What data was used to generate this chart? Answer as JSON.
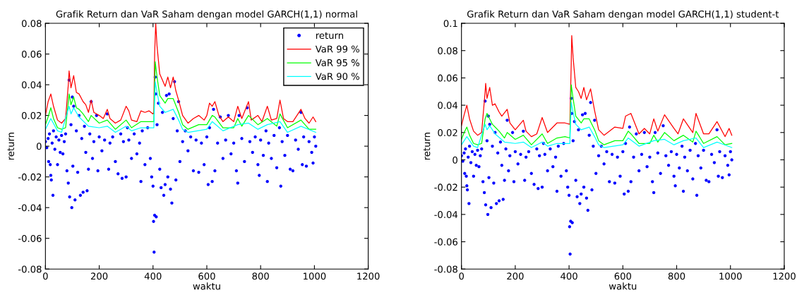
{
  "chart_data": [
    {
      "type": "line",
      "title": "Grafik Return dan VaR Saham dengan model GARCH(1,1) normal",
      "xlabel": "waktu",
      "ylabel": "return",
      "xlim": [
        0,
        1200
      ],
      "ylim": [
        -0.08,
        0.08
      ],
      "xticks": [
        0,
        200,
        400,
        600,
        800,
        1000,
        1200
      ],
      "yticks": [
        -0.08,
        -0.06,
        -0.04,
        -0.02,
        0,
        0.02,
        0.04,
        0.06,
        0.08
      ],
      "legend": "top right",
      "series": [
        {
          "name": "return",
          "type": "scatter",
          "marker": "circle",
          "color": "#0000ff",
          "x": [
            0,
            5,
            10,
            12,
            15,
            18,
            20,
            22,
            25,
            28,
            30,
            35,
            40,
            45,
            50,
            55,
            60,
            65,
            70,
            75,
            80,
            85,
            88,
            90,
            95,
            98,
            100,
            102,
            105,
            110,
            115,
            120,
            125,
            130,
            135,
            140,
            145,
            150,
            155,
            160,
            165,
            170,
            175,
            180,
            190,
            195,
            200,
            210,
            220,
            230,
            235,
            240,
            250,
            260,
            270,
            280,
            285,
            290,
            300,
            305,
            310,
            320,
            330,
            340,
            350,
            355,
            360,
            370,
            380,
            390,
            395,
            400,
            402,
            404,
            406,
            408,
            410,
            412,
            415,
            420,
            425,
            430,
            435,
            440,
            445,
            450,
            455,
            460,
            465,
            470,
            475,
            480,
            485,
            490,
            495,
            500,
            510,
            520,
            530,
            540,
            550,
            560,
            570,
            580,
            590,
            600,
            605,
            610,
            620,
            625,
            630,
            640,
            650,
            660,
            670,
            680,
            690,
            700,
            710,
            715,
            720,
            730,
            740,
            750,
            760,
            770,
            780,
            790,
            795,
            800,
            810,
            820,
            825,
            830,
            840,
            850,
            860,
            870,
            875,
            880,
            890,
            900,
            910,
            920,
            930,
            940,
            950,
            955,
            960,
            970,
            980,
            990,
            995,
            1000,
            1005
          ],
          "values": [
            0.003,
            -0.001,
            0.005,
            -0.01,
            0.008,
            -0.012,
            -0.019,
            -0.022,
            0.002,
            -0.032,
            0.01,
            -0.002,
            0.006,
            -0.012,
            0.004,
            -0.004,
            0.007,
            -0.005,
            0.003,
            0.008,
            -0.016,
            -0.024,
            0.043,
            -0.033,
            0.014,
            -0.04,
            0.032,
            -0.013,
            0.026,
            -0.035,
            0.01,
            -0.017,
            0.02,
            -0.032,
            0.005,
            -0.03,
            0.013,
            -0.004,
            -0.029,
            -0.015,
            0.008,
            0.029,
            -0.008,
            0.003,
            0.02,
            -0.016,
            0.006,
            -0.003,
            0.004,
            0.021,
            -0.015,
            0.002,
            0.006,
            -0.01,
            -0.018,
            0.008,
            -0.021,
            0.003,
            -0.02,
            0.012,
            0.004,
            -0.008,
            0.008,
            -0.005,
            0.002,
            -0.023,
            0.01,
            -0.012,
            0.012,
            -0.008,
            -0.02,
            -0.026,
            -0.049,
            -0.069,
            -0.045,
            0.045,
            0.034,
            -0.046,
            0.014,
            0.028,
            -0.015,
            -0.027,
            0.022,
            -0.032,
            -0.025,
            0.033,
            -0.02,
            0.034,
            -0.028,
            -0.037,
            0.018,
            0.042,
            -0.022,
            0.01,
            0.029,
            -0.01,
            0.003,
            0.01,
            -0.003,
            0.006,
            -0.016,
            0.004,
            -0.017,
            0.002,
            -0.012,
            0.006,
            -0.025,
            0.012,
            -0.023,
            0.024,
            -0.016,
            0.002,
            0.019,
            -0.008,
            0.004,
            0.02,
            -0.005,
            0.002,
            -0.016,
            -0.024,
            0.02,
            0.005,
            -0.01,
            0.025,
            0.003,
            -0.004,
            0.006,
            -0.012,
            -0.019,
            0.004,
            -0.006,
            0.01,
            -0.023,
            0.002,
            -0.008,
            0.007,
            -0.014,
            0.012,
            -0.026,
            0.003,
            -0.006,
            0.007,
            -0.015,
            -0.016,
            0.004,
            -0.002,
            0.022,
            -0.012,
            0.006,
            -0.013,
            0.003,
            -0.004,
            -0.011,
            0.006,
            0
          ]
        },
        {
          "name": "VaR 99 %",
          "color": "#ff0000",
          "x": [
            0,
            10,
            20,
            30,
            45,
            60,
            75,
            85,
            88,
            95,
            105,
            115,
            125,
            140,
            150,
            160,
            170,
            180,
            200,
            215,
            230,
            240,
            260,
            280,
            300,
            310,
            320,
            340,
            355,
            370,
            385,
            400,
            403,
            406,
            410,
            415,
            425,
            435,
            445,
            455,
            465,
            475,
            485,
            495,
            510,
            530,
            550,
            570,
            590,
            600,
            610,
            620,
            630,
            645,
            660,
            680,
            700,
            715,
            730,
            755,
            765,
            790,
            805,
            825,
            840,
            860,
            872,
            885,
            900,
            920,
            950,
            965,
            980,
            995,
            1005
          ],
          "values": [
            0.02,
            0.029,
            0.034,
            0.026,
            0.017,
            0.015,
            0.018,
            0.04,
            0.049,
            0.038,
            0.046,
            0.035,
            0.034,
            0.029,
            0.027,
            0.022,
            0.03,
            0.022,
            0.02,
            0.018,
            0.024,
            0.018,
            0.015,
            0.017,
            0.026,
            0.023,
            0.017,
            0.016,
            0.023,
            0.022,
            0.023,
            0.021,
            0.022,
            0.06,
            0.08,
            0.065,
            0.047,
            0.043,
            0.039,
            0.045,
            0.038,
            0.045,
            0.036,
            0.03,
            0.02,
            0.015,
            0.018,
            0.02,
            0.017,
            0.02,
            0.028,
            0.026,
            0.029,
            0.02,
            0.016,
            0.019,
            0.016,
            0.026,
            0.018,
            0.029,
            0.017,
            0.02,
            0.016,
            0.026,
            0.017,
            0.018,
            0.03,
            0.018,
            0.016,
            0.016,
            0.024,
            0.018,
            0.015,
            0.019,
            0.016
          ]
        },
        {
          "name": "VaR 95 %",
          "color": "#00ff00",
          "x": [
            0,
            10,
            20,
            30,
            45,
            60,
            75,
            88,
            95,
            105,
            115,
            125,
            140,
            160,
            170,
            200,
            230,
            260,
            300,
            320,
            355,
            385,
            403,
            408,
            415,
            425,
            445,
            455,
            475,
            495,
            510,
            530,
            570,
            600,
            620,
            630,
            660,
            700,
            715,
            730,
            755,
            790,
            825,
            860,
            872,
            900,
            950,
            980,
            1005
          ],
          "values": [
            0.014,
            0.019,
            0.025,
            0.018,
            0.012,
            0.011,
            0.012,
            0.034,
            0.027,
            0.032,
            0.025,
            0.024,
            0.021,
            0.016,
            0.02,
            0.015,
            0.017,
            0.011,
            0.017,
            0.012,
            0.016,
            0.016,
            0.016,
            0.055,
            0.045,
            0.033,
            0.028,
            0.031,
            0.031,
            0.022,
            0.014,
            0.011,
            0.014,
            0.014,
            0.02,
            0.019,
            0.012,
            0.012,
            0.018,
            0.013,
            0.02,
            0.014,
            0.018,
            0.013,
            0.021,
            0.012,
            0.017,
            0.011,
            0.011
          ]
        },
        {
          "name": "VaR 90 %",
          "color": "#00ffff",
          "x": [
            0,
            20,
            45,
            60,
            88,
            95,
            105,
            125,
            160,
            200,
            230,
            260,
            300,
            320,
            355,
            403,
            408,
            415,
            425,
            445,
            475,
            495,
            510,
            530,
            600,
            620,
            660,
            715,
            755,
            790,
            825,
            872,
            900,
            950,
            1005
          ],
          "values": [
            0.011,
            0.018,
            0.01,
            0.009,
            0.026,
            0.021,
            0.025,
            0.019,
            0.013,
            0.012,
            0.013,
            0.009,
            0.013,
            0.01,
            0.012,
            0.012,
            0.042,
            0.035,
            0.026,
            0.022,
            0.024,
            0.017,
            0.011,
            0.009,
            0.011,
            0.016,
            0.01,
            0.014,
            0.015,
            0.011,
            0.014,
            0.016,
            0.009,
            0.013,
            0.009
          ]
        }
      ]
    },
    {
      "type": "line",
      "title": "Grafik Return dan VaR Saham dengan model GARCH(1,1) student-t",
      "xlabel": "waktu",
      "ylabel": "return",
      "xlim": [
        0,
        1200
      ],
      "ylim": [
        -0.08,
        0.1
      ],
      "xticks": [
        0,
        200,
        400,
        600,
        800,
        1000,
        1200
      ],
      "yticks": [
        -0.08,
        -0.06,
        -0.04,
        -0.02,
        0,
        0.02,
        0.04,
        0.06,
        0.08,
        0.1
      ],
      "series": [
        {
          "type": "scatter",
          "marker": "circle",
          "color": "#0000ff",
          "x": [
            0,
            5,
            10,
            12,
            15,
            18,
            20,
            22,
            25,
            28,
            30,
            35,
            40,
            45,
            50,
            55,
            60,
            65,
            70,
            75,
            80,
            85,
            88,
            90,
            95,
            98,
            100,
            102,
            105,
            110,
            115,
            120,
            125,
            130,
            135,
            140,
            145,
            150,
            155,
            160,
            165,
            170,
            175,
            180,
            190,
            195,
            200,
            210,
            220,
            230,
            235,
            240,
            250,
            260,
            270,
            280,
            285,
            290,
            300,
            305,
            310,
            320,
            330,
            340,
            350,
            355,
            360,
            370,
            380,
            390,
            395,
            400,
            402,
            404,
            406,
            408,
            410,
            412,
            415,
            420,
            425,
            430,
            435,
            440,
            445,
            450,
            455,
            460,
            465,
            470,
            475,
            480,
            485,
            490,
            495,
            500,
            510,
            520,
            530,
            540,
            550,
            560,
            570,
            580,
            590,
            600,
            605,
            610,
            620,
            625,
            630,
            640,
            650,
            660,
            670,
            680,
            690,
            700,
            710,
            715,
            720,
            730,
            740,
            750,
            760,
            770,
            780,
            790,
            795,
            800,
            810,
            820,
            825,
            830,
            840,
            850,
            860,
            870,
            875,
            880,
            890,
            900,
            910,
            920,
            930,
            940,
            950,
            955,
            960,
            970,
            980,
            990,
            995,
            1000,
            1005
          ],
          "values": [
            0.003,
            -0.001,
            0.005,
            -0.01,
            0.008,
            -0.012,
            -0.019,
            -0.022,
            0.002,
            -0.032,
            0.01,
            -0.002,
            0.006,
            -0.012,
            0.004,
            -0.004,
            0.007,
            -0.005,
            0.003,
            0.008,
            -0.016,
            -0.024,
            0.043,
            -0.033,
            0.014,
            -0.04,
            0.032,
            -0.013,
            0.026,
            -0.035,
            0.01,
            -0.017,
            0.02,
            -0.032,
            0.005,
            -0.03,
            0.013,
            -0.004,
            -0.029,
            -0.015,
            0.008,
            0.029,
            -0.008,
            0.003,
            0.02,
            -0.016,
            0.006,
            -0.003,
            0.004,
            0.021,
            -0.015,
            0.002,
            0.006,
            -0.01,
            -0.018,
            0.008,
            -0.021,
            0.003,
            -0.02,
            0.012,
            0.004,
            -0.008,
            0.008,
            -0.005,
            0.002,
            -0.023,
            0.01,
            -0.012,
            0.012,
            -0.008,
            -0.02,
            -0.026,
            -0.049,
            -0.069,
            -0.045,
            0.045,
            0.034,
            -0.046,
            0.014,
            0.028,
            -0.015,
            -0.027,
            0.022,
            -0.032,
            -0.025,
            0.033,
            -0.02,
            0.034,
            -0.028,
            -0.037,
            0.018,
            0.042,
            -0.022,
            0.01,
            0.029,
            -0.01,
            0.003,
            0.01,
            -0.003,
            0.006,
            -0.016,
            0.004,
            -0.017,
            0.002,
            -0.012,
            0.006,
            -0.025,
            0.012,
            -0.023,
            0.024,
            -0.016,
            0.002,
            0.019,
            -0.008,
            0.004,
            0.02,
            -0.005,
            0.002,
            -0.016,
            -0.024,
            0.02,
            0.005,
            -0.01,
            0.025,
            0.003,
            -0.004,
            0.006,
            -0.012,
            -0.019,
            0.004,
            -0.006,
            0.01,
            -0.023,
            0.002,
            -0.008,
            0.007,
            -0.014,
            0.012,
            -0.026,
            0.003,
            -0.006,
            0.007,
            -0.015,
            -0.016,
            0.004,
            -0.002,
            0.022,
            -0.012,
            0.006,
            -0.013,
            0.003,
            -0.004,
            -0.011,
            0.006,
            0
          ]
        },
        {
          "color": "#ff0000",
          "x": [
            0,
            10,
            20,
            30,
            45,
            60,
            75,
            88,
            90,
            95,
            105,
            115,
            125,
            140,
            150,
            170,
            180,
            200,
            230,
            240,
            260,
            280,
            300,
            320,
            355,
            385,
            403,
            408,
            410,
            415,
            425,
            435,
            445,
            455,
            465,
            480,
            495,
            510,
            530,
            570,
            600,
            610,
            630,
            660,
            680,
            700,
            715,
            730,
            755,
            790,
            805,
            825,
            860,
            872,
            900,
            920,
            950,
            980,
            995,
            1005
          ],
          "values": [
            0.025,
            0.033,
            0.04,
            0.03,
            0.021,
            0.018,
            0.02,
            0.05,
            0.056,
            0.045,
            0.053,
            0.04,
            0.041,
            0.035,
            0.032,
            0.037,
            0.027,
            0.022,
            0.029,
            0.021,
            0.017,
            0.019,
            0.031,
            0.02,
            0.027,
            0.027,
            0.026,
            0.07,
            0.091,
            0.075,
            0.053,
            0.05,
            0.045,
            0.053,
            0.044,
            0.052,
            0.036,
            0.022,
            0.018,
            0.024,
            0.023,
            0.032,
            0.034,
            0.019,
            0.023,
            0.019,
            0.03,
            0.021,
            0.033,
            0.023,
            0.019,
            0.03,
            0.02,
            0.034,
            0.019,
            0.019,
            0.028,
            0.017,
            0.023,
            0.018
          ]
        },
        {
          "color": "#00ff00",
          "x": [
            0,
            10,
            20,
            30,
            45,
            60,
            75,
            88,
            95,
            105,
            115,
            125,
            140,
            160,
            170,
            200,
            230,
            260,
            300,
            320,
            355,
            385,
            403,
            408,
            415,
            425,
            445,
            455,
            475,
            495,
            510,
            530,
            570,
            600,
            620,
            630,
            660,
            700,
            715,
            730,
            755,
            790,
            825,
            860,
            872,
            900,
            950,
            980,
            1005
          ],
          "values": [
            0.015,
            0.02,
            0.024,
            0.018,
            0.012,
            0.011,
            0.012,
            0.03,
            0.034,
            0.03,
            0.026,
            0.024,
            0.021,
            0.016,
            0.02,
            0.015,
            0.018,
            0.011,
            0.019,
            0.012,
            0.016,
            0.017,
            0.016,
            0.055,
            0.045,
            0.032,
            0.027,
            0.03,
            0.03,
            0.022,
            0.014,
            0.011,
            0.014,
            0.014,
            0.021,
            0.019,
            0.012,
            0.012,
            0.018,
            0.013,
            0.02,
            0.014,
            0.018,
            0.013,
            0.021,
            0.012,
            0.017,
            0.011,
            0.012
          ]
        },
        {
          "color": "#00ffff",
          "x": [
            0,
            20,
            45,
            60,
            88,
            95,
            105,
            125,
            160,
            200,
            230,
            260,
            300,
            320,
            355,
            403,
            408,
            415,
            425,
            445,
            475,
            495,
            510,
            530,
            600,
            620,
            660,
            715,
            755,
            790,
            825,
            872,
            900,
            950,
            1005
          ],
          "values": [
            0.011,
            0.017,
            0.01,
            0.009,
            0.026,
            0.022,
            0.025,
            0.019,
            0.013,
            0.012,
            0.013,
            0.009,
            0.013,
            0.01,
            0.012,
            0.012,
            0.042,
            0.035,
            0.026,
            0.022,
            0.024,
            0.017,
            0.011,
            0.009,
            0.011,
            0.016,
            0.01,
            0.014,
            0.015,
            0.011,
            0.014,
            0.016,
            0.009,
            0.013,
            0.009
          ]
        }
      ]
    }
  ]
}
